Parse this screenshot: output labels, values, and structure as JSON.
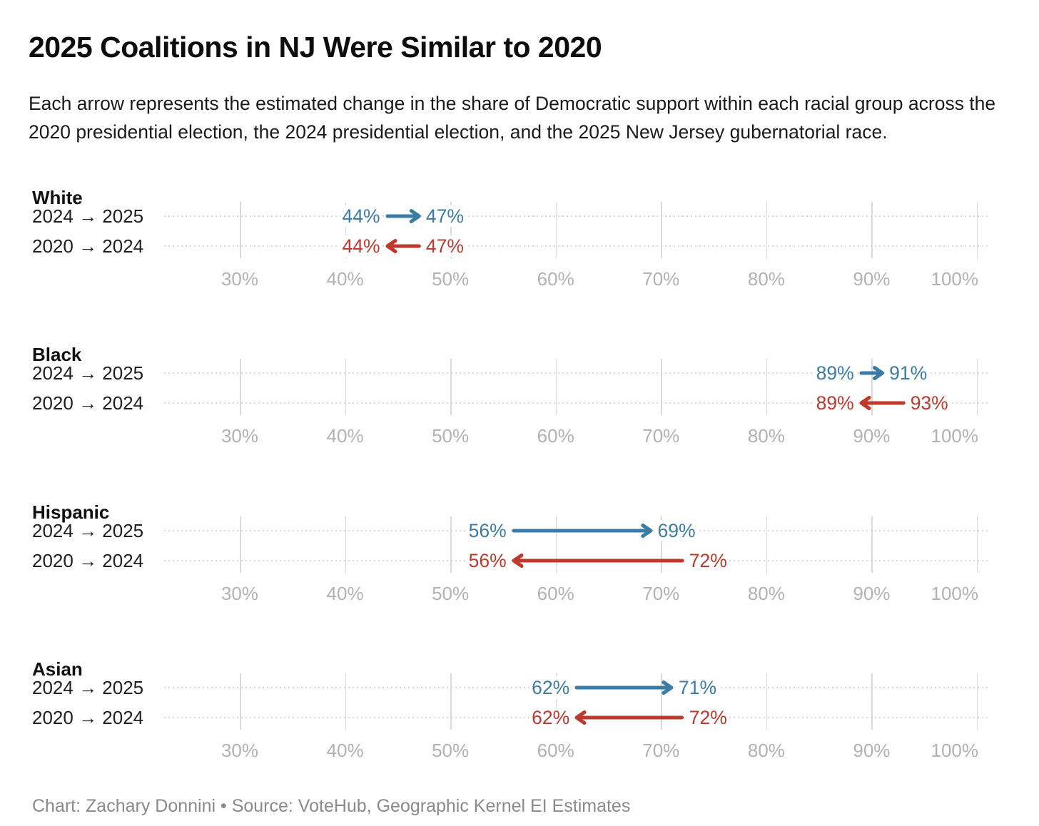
{
  "chart_data": {
    "type": "arrow",
    "title": "2025 Coalitions in NJ Were Similar to 2020",
    "subtitle": "Each arrow represents the estimated change in the share of Democratic support within each racial group across the 2020 presidential election, the 2024 presidential election, and the 2025 New Jersey gubernatorial race.",
    "footer": "Chart: Zachary Donnini • Source: VoteHub, Geographic Kernel EI Estimates",
    "unit": "%",
    "axis": {
      "ticks": [
        30,
        40,
        50,
        60,
        70,
        80,
        90,
        100
      ],
      "tick_labels": [
        "30%",
        "40%",
        "50%",
        "60%",
        "70%",
        "80%",
        "90%",
        "100%"
      ],
      "min": 22.8,
      "max": 101.5,
      "gridlines": true
    },
    "row_labels": [
      "2024 → 2025",
      "2020 → 2024"
    ],
    "series": [
      {
        "name": "2024 → 2025",
        "color": "#3a7ca6"
      },
      {
        "name": "2020 → 2024",
        "color": "#bd392c"
      }
    ],
    "groups": [
      {
        "name": "White",
        "arrows": [
          {
            "series": "2024 → 2025",
            "from": 44,
            "to": 47,
            "from_label": "44%",
            "to_label": "47%"
          },
          {
            "series": "2020 → 2024",
            "from": 47,
            "to": 44,
            "from_label": "47%",
            "to_label": "44%"
          }
        ]
      },
      {
        "name": "Black",
        "arrows": [
          {
            "series": "2024 → 2025",
            "from": 89,
            "to": 91,
            "from_label": "89%",
            "to_label": "91%"
          },
          {
            "series": "2020 → 2024",
            "from": 93,
            "to": 89,
            "from_label": "93%",
            "to_label": "89%"
          }
        ]
      },
      {
        "name": "Hispanic",
        "arrows": [
          {
            "series": "2024 → 2025",
            "from": 56,
            "to": 69,
            "from_label": "56%",
            "to_label": "69%"
          },
          {
            "series": "2020 → 2024",
            "from": 72,
            "to": 56,
            "from_label": "72%",
            "to_label": "56%"
          }
        ]
      },
      {
        "name": "Asian",
        "arrows": [
          {
            "series": "2024 → 2025",
            "from": 62,
            "to": 71,
            "from_label": "62%",
            "to_label": "71%"
          },
          {
            "series": "2020 → 2024",
            "from": 72,
            "to": 62,
            "from_label": "72%",
            "to_label": "62%"
          }
        ]
      }
    ]
  }
}
